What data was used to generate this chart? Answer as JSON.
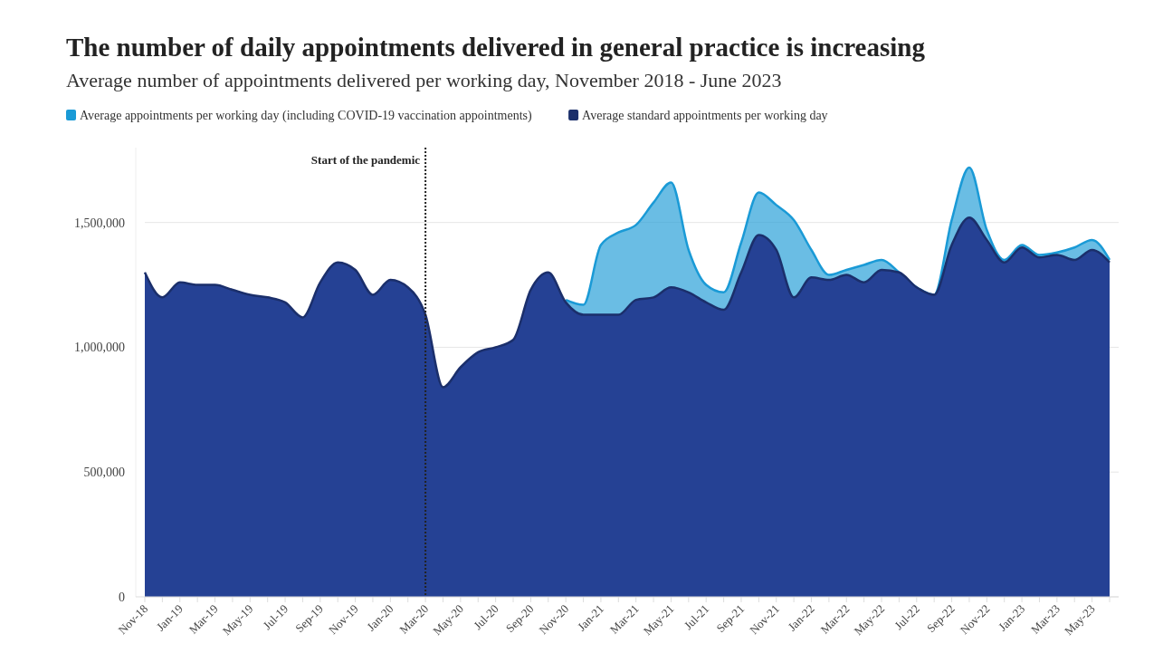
{
  "chart_data": {
    "type": "area",
    "title": "The number of daily appointments delivered in general practice is increasing",
    "subtitle": "Average number of appointments delivered per working day, November 2018 - June 2023",
    "categories": [
      "Nov-18",
      null,
      "Jan-19",
      null,
      "Mar-19",
      null,
      "May-19",
      null,
      "Jul-19",
      null,
      "Sep-19",
      null,
      "Nov-19",
      null,
      "Jan-20",
      null,
      "Mar-20",
      null,
      "May-20",
      null,
      "Jul-20",
      null,
      "Sep-20",
      null,
      "Nov-20",
      null,
      "Jan-21",
      null,
      "Mar-21",
      null,
      "May-21",
      null,
      "Jul-21",
      null,
      "Sep-21",
      null,
      "Nov-21",
      null,
      "Jan-22",
      null,
      "Mar-22",
      null,
      "May-22",
      null,
      "Jul-22",
      null,
      "Sep-22",
      null,
      "Nov-22",
      null,
      "Jan-23",
      null,
      "Mar-23",
      null,
      "May-23",
      null
    ],
    "series": [
      {
        "name": "Average appointments per working day (including COVID-19 vaccination appointments)",
        "color": "#1a9ad6",
        "values": [
          null,
          null,
          null,
          null,
          null,
          null,
          null,
          null,
          null,
          null,
          null,
          null,
          null,
          null,
          null,
          null,
          null,
          null,
          null,
          null,
          null,
          null,
          null,
          null,
          1190000,
          1170000,
          1410000,
          1460000,
          1490000,
          1580000,
          1660000,
          1390000,
          1250000,
          1220000,
          1420000,
          1620000,
          1570000,
          1510000,
          1390000,
          1290000,
          1310000,
          1330000,
          1350000,
          1300000,
          1240000,
          1210000,
          1510000,
          1720000,
          1470000,
          1350000,
          1410000,
          1370000,
          1380000,
          1400000,
          1430000,
          1350000
        ]
      },
      {
        "name": "Average standard appointments per working day",
        "color": "#1b2f6b",
        "values": [
          1300000,
          1200000,
          1260000,
          1250000,
          1250000,
          1230000,
          1210000,
          1200000,
          1180000,
          1120000,
          1260000,
          1340000,
          1310000,
          1210000,
          1270000,
          1240000,
          1130000,
          840000,
          920000,
          980000,
          1000000,
          1030000,
          1230000,
          1300000,
          1180000,
          1130000,
          1130000,
          1130000,
          1190000,
          1200000,
          1240000,
          1220000,
          1180000,
          1150000,
          1300000,
          1450000,
          1390000,
          1200000,
          1280000,
          1270000,
          1290000,
          1260000,
          1310000,
          1300000,
          1240000,
          1210000,
          1410000,
          1520000,
          1430000,
          1340000,
          1400000,
          1360000,
          1370000,
          1350000,
          1390000,
          1340000
        ]
      }
    ],
    "ylim": [
      0,
      1800000
    ],
    "yticks": [
      0,
      {
        "value": 500000,
        "label": "500,000"
      },
      {
        "value": 1000000,
        "label": "1,000,000"
      },
      {
        "value": 1500000,
        "label": "1,500,000"
      }
    ],
    "grid": "y",
    "legend": "top left",
    "ref_lines": [
      {
        "axis": "x",
        "value": "Mar-20",
        "label": "Start of the pandemic",
        "line_style": "dotted",
        "color": "#222222"
      }
    ]
  }
}
